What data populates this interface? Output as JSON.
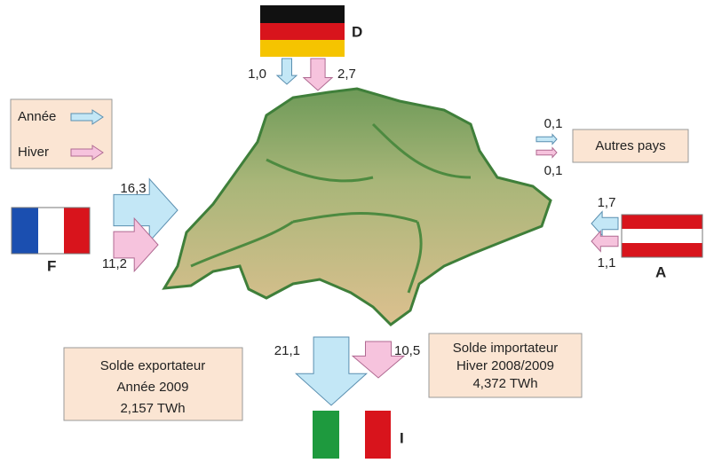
{
  "legend": {
    "items": [
      {
        "label": "Année",
        "color": "#c3e7f6"
      },
      {
        "label": "Hiver",
        "color": "#f6c3dd"
      }
    ]
  },
  "countries": [
    {
      "label": "D",
      "flows": [
        {
          "value": 1.0,
          "label": "1,0",
          "color": "#c3e7f6"
        },
        {
          "value": 2.7,
          "label": "2,7",
          "color": "#f6c3dd"
        }
      ]
    },
    {
      "label": "F",
      "flows": [
        {
          "value": 16.3,
          "label": "16,3",
          "color": "#c3e7f6"
        },
        {
          "value": 11.2,
          "label": "11,2",
          "color": "#f6c3dd"
        }
      ]
    },
    {
      "label": "Autres pays",
      "flows": [
        {
          "value": 0.1,
          "label": "0,1",
          "color": "#c3e7f6"
        },
        {
          "value": 0.1,
          "label": "0,1",
          "color": "#f6c3dd"
        }
      ]
    },
    {
      "label": "A",
      "flows": [
        {
          "value": 1.7,
          "label": "1,7",
          "color": "#c3e7f6"
        },
        {
          "value": 1.1,
          "label": "1,1",
          "color": "#f6c3dd"
        }
      ]
    },
    {
      "label": "I",
      "flows": [
        {
          "value": 21.1,
          "label": "21,1",
          "color": "#c3e7f6"
        },
        {
          "value": 10.5,
          "label": "10,5",
          "color": "#f6c3dd"
        }
      ]
    }
  ],
  "export_box": {
    "lines": [
      "Solde exportateur",
      "Année 2009",
      "2,157 TWh"
    ]
  },
  "import_box": {
    "lines": [
      "Solde importateur",
      "Hiver 2008/2009",
      "4,372 TWh"
    ]
  }
}
